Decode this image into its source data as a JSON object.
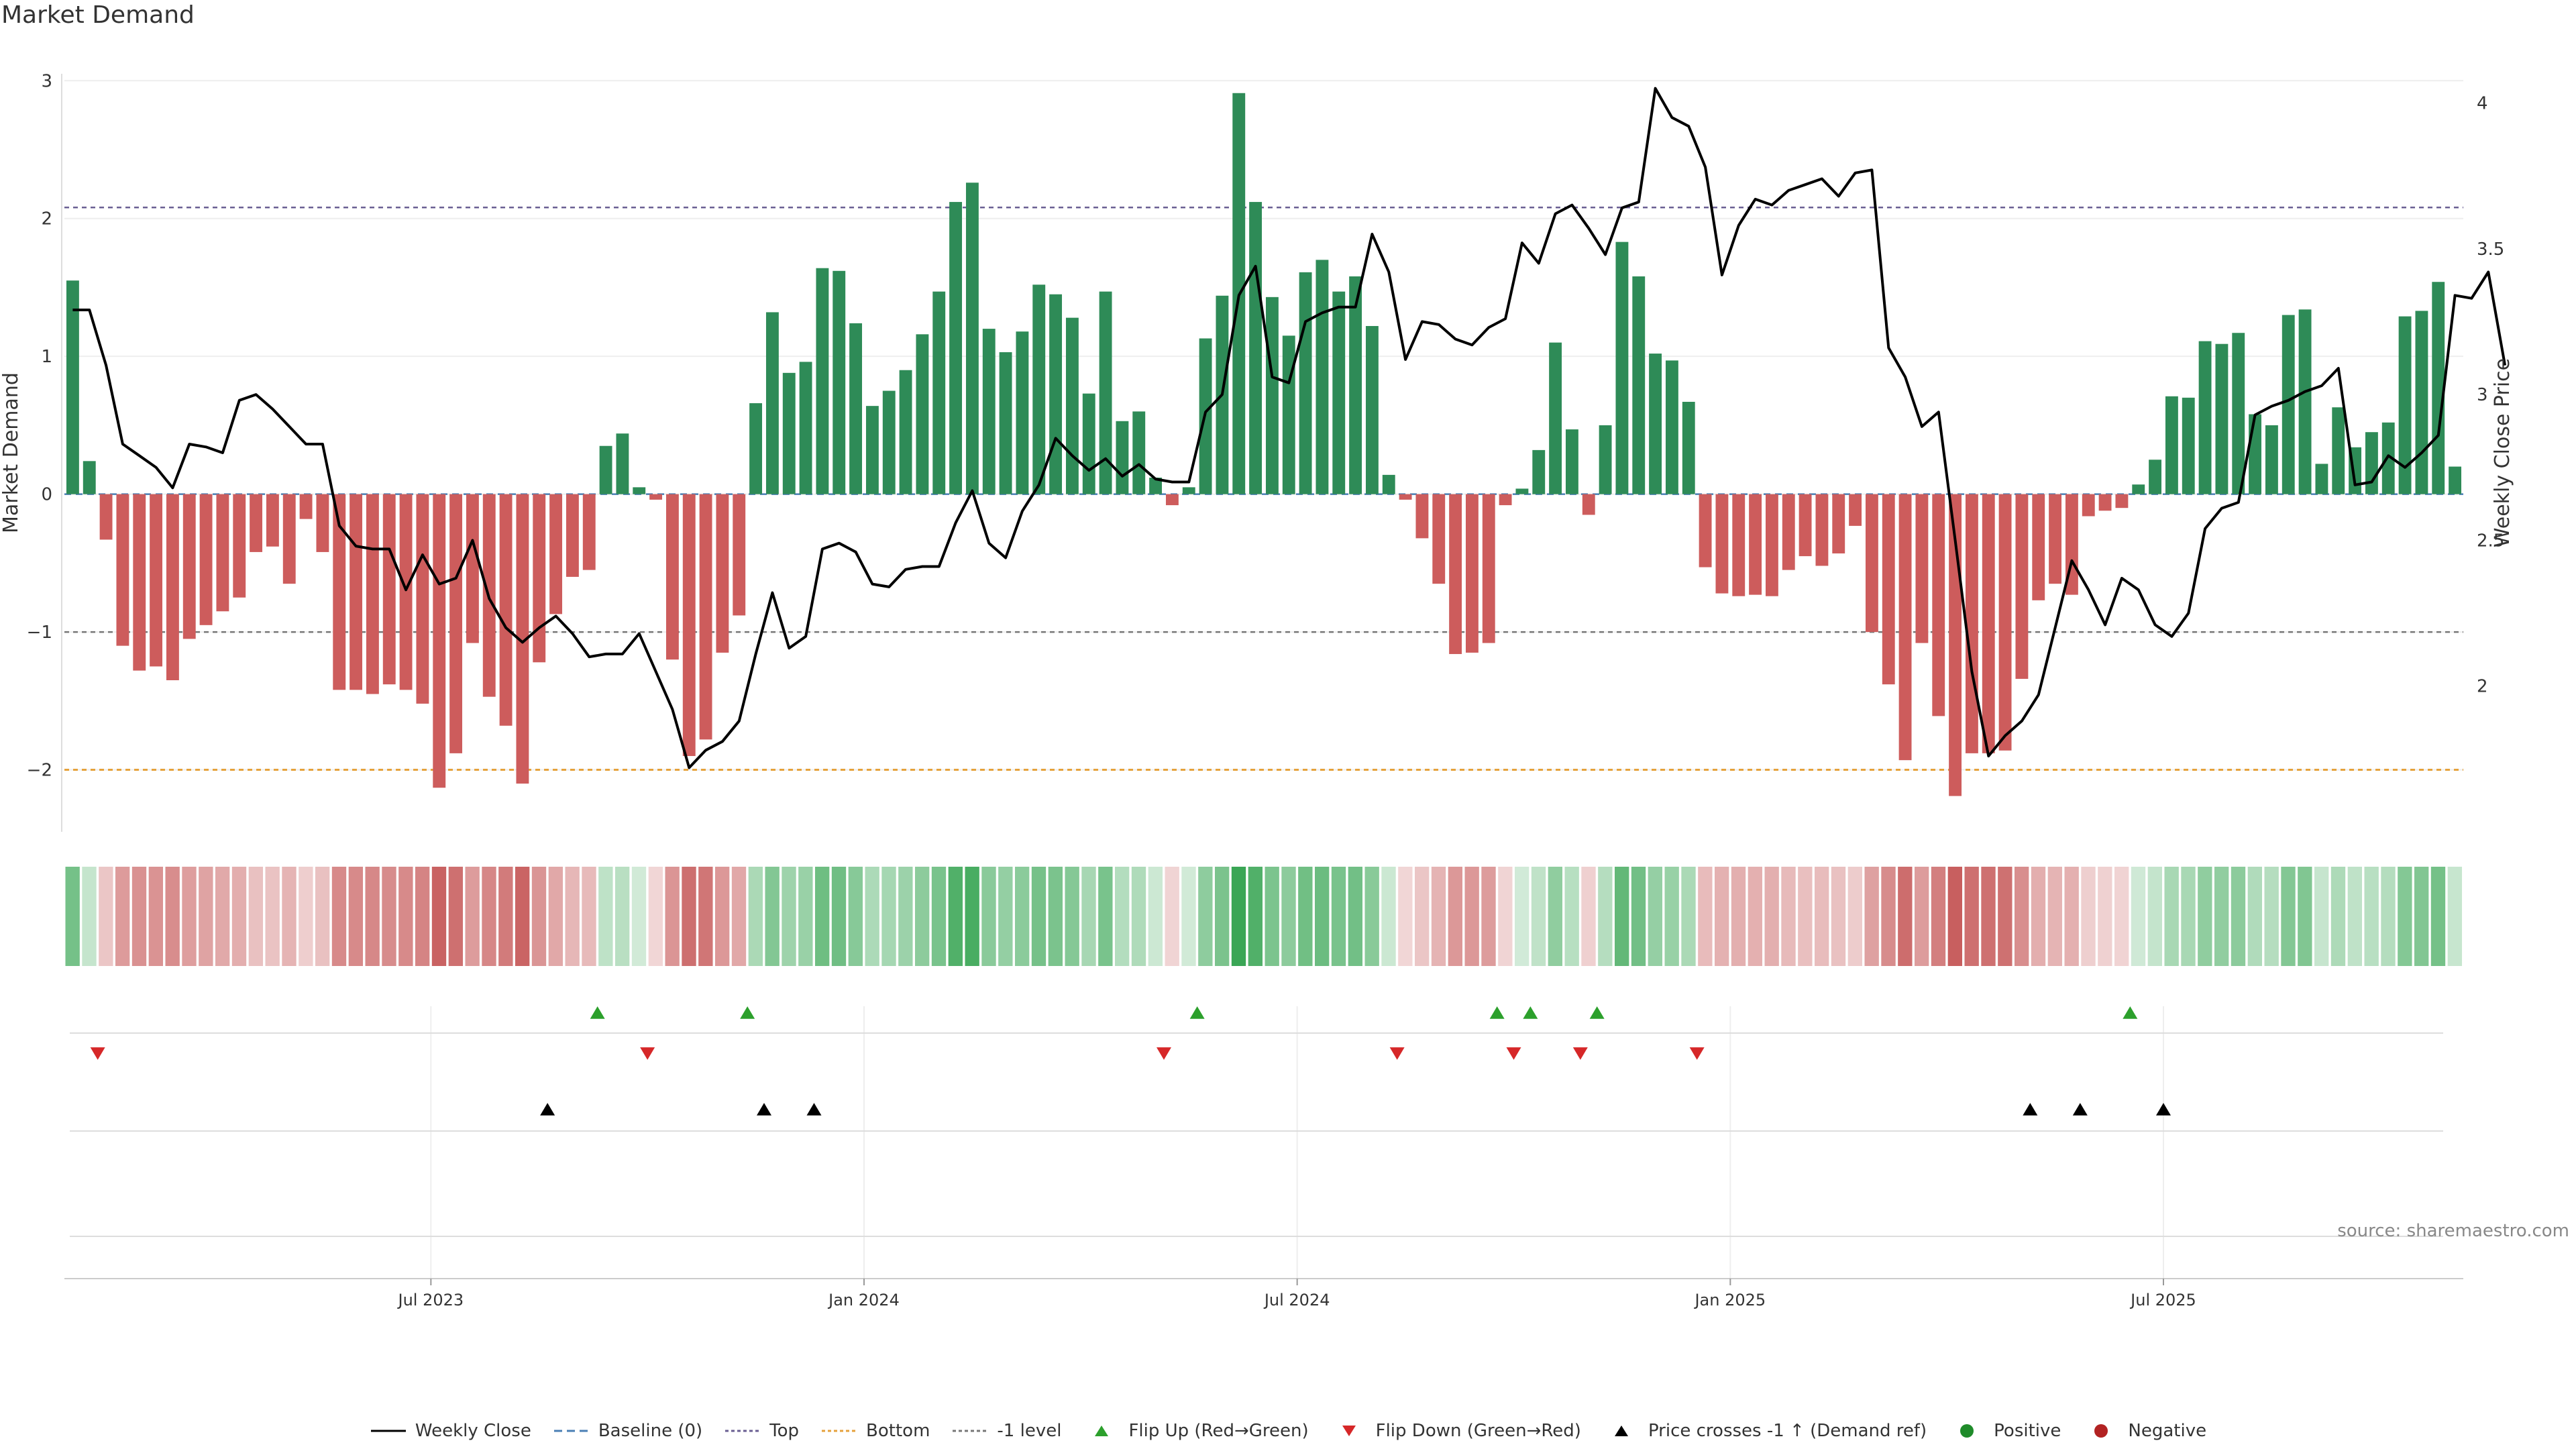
{
  "title": "Market Demand",
  "source": "source: sharemaestro.com",
  "colors": {
    "positive": "#2e8b57",
    "negative": "#cd5c5c",
    "price": "#000000",
    "flip_up": "#2ca02c",
    "flip_down": "#d62728",
    "top_line": "#6a5f93",
    "bottom_line": "#e6a23c",
    "minus1_line": "#777777",
    "heat_pos": "#3aa655",
    "heat_neg": "#c24e4e"
  },
  "legend": [
    {
      "key": "weekly_close",
      "label": "Weekly Close",
      "icon": "solid-line-icon"
    },
    {
      "key": "baseline",
      "label": "Baseline (0)",
      "icon": "dashed-line-icon"
    },
    {
      "key": "top",
      "label": "Top",
      "icon": "dotted-line-icon"
    },
    {
      "key": "bottom",
      "label": "Bottom",
      "icon": "dotted-line-icon"
    },
    {
      "key": "minus1",
      "label": "-1 level",
      "icon": "dotted-line-icon"
    },
    {
      "key": "flip_up",
      "label": "Flip Up (Red→Green)",
      "icon": "triangle-up-icon"
    },
    {
      "key": "flip_down",
      "label": "Flip Down (Green→Red)",
      "icon": "triangle-down-icon"
    },
    {
      "key": "price_cross",
      "label": "Price crosses -1 ↑ (Demand ref)",
      "icon": "triangle-up-icon"
    },
    {
      "key": "positive",
      "label": "Positive",
      "icon": "circle-icon"
    },
    {
      "key": "negative",
      "label": "Negative",
      "icon": "circle-icon"
    }
  ],
  "chart_data": {
    "type": "bar",
    "title": "Market Demand",
    "ylabel": "Market Demand",
    "y2label": "Weekly Close Price",
    "xlabel": "",
    "ylim": [
      -2.45,
      3.05
    ],
    "y2lim": [
      1.5,
      4.1
    ],
    "yticks": [
      -2,
      -1,
      0,
      1,
      2,
      3
    ],
    "yticklabels": [
      "−2",
      "−1",
      "0",
      "1",
      "2",
      "3"
    ],
    "y2ticks": [
      2,
      2.5,
      3,
      3.5,
      4
    ],
    "y2ticklabels": [
      "2",
      "2.5",
      "3",
      "3.5",
      "4"
    ],
    "xticklabels": [
      "Jul 2023",
      "Jan 2024",
      "Jul 2024",
      "Jan 2025",
      "Jul 2025"
    ],
    "xtick_week_index": [
      22,
      48,
      74,
      100,
      126
    ],
    "levels": {
      "top": 2.08,
      "bottom": -2.0,
      "minus1": -1.0,
      "baseline": 0
    },
    "series": [
      {
        "name": "Market Demand",
        "kind": "bar",
        "values": [
          1.55,
          0.24,
          -0.33,
          -1.1,
          -1.28,
          -1.25,
          -1.35,
          -1.05,
          -0.95,
          -0.85,
          -0.75,
          -0.42,
          -0.38,
          -0.65,
          -0.18,
          -0.42,
          -1.42,
          -1.42,
          -1.45,
          -1.38,
          -1.42,
          -1.52,
          -2.13,
          -1.88,
          -1.08,
          -1.47,
          -1.68,
          -2.1,
          -1.22,
          -0.87,
          -0.6,
          -0.55,
          0.35,
          0.44,
          0.05,
          -0.04,
          -1.2,
          -1.9,
          -1.78,
          -1.15,
          -0.88,
          0.66,
          1.32,
          0.88,
          0.96,
          1.64,
          1.62,
          1.24,
          0.64,
          0.75,
          0.9,
          1.16,
          1.47,
          2.12,
          2.26,
          1.2,
          1.03,
          1.18,
          1.52,
          1.45,
          1.28,
          0.73,
          1.47,
          0.53,
          0.6,
          0.12,
          -0.08,
          0.05,
          1.13,
          1.44,
          2.91,
          2.12,
          1.43,
          1.15,
          1.61,
          1.7,
          1.47,
          1.58,
          1.22,
          0.14,
          -0.04,
          -0.32,
          -0.65,
          -1.16,
          -1.15,
          -1.08,
          -0.08,
          0.04,
          0.32,
          1.1,
          0.47,
          -0.15,
          0.5,
          1.83,
          1.58,
          1.02,
          0.97,
          0.67,
          -0.53,
          -0.72,
          -0.74,
          -0.73,
          -0.74,
          -0.55,
          -0.45,
          -0.52,
          -0.43,
          -0.23,
          -1.0,
          -1.38,
          -1.93,
          -1.08,
          -1.61,
          -2.19,
          -1.88,
          -1.88,
          -1.86,
          -1.34,
          -0.77,
          -0.65,
          -0.73,
          -0.16,
          -0.12,
          -0.1,
          0.07,
          0.25,
          0.71,
          0.7,
          1.11,
          1.09,
          1.17,
          0.58,
          0.5,
          1.3,
          1.34,
          0.22,
          0.63,
          0.34,
          0.45,
          0.52,
          1.29,
          1.33,
          1.54,
          0.2
        ]
      },
      {
        "name": "Weekly Close",
        "kind": "line",
        "axis": "right",
        "values": [
          3.29,
          3.29,
          3.1,
          2.83,
          2.79,
          2.75,
          2.68,
          2.83,
          2.82,
          2.8,
          2.98,
          3.0,
          2.95,
          2.89,
          2.83,
          2.83,
          2.55,
          2.48,
          2.47,
          2.47,
          2.33,
          2.45,
          2.35,
          2.37,
          2.5,
          2.3,
          2.2,
          2.15,
          2.2,
          2.24,
          2.18,
          2.1,
          2.11,
          2.11,
          2.18,
          2.05,
          1.92,
          1.72,
          1.78,
          1.81,
          1.88,
          2.11,
          2.32,
          2.13,
          2.17,
          2.47,
          2.49,
          2.46,
          2.35,
          2.34,
          2.4,
          2.41,
          2.41,
          2.56,
          2.67,
          2.49,
          2.44,
          2.6,
          2.69,
          2.85,
          2.79,
          2.74,
          2.78,
          2.72,
          2.76,
          2.71,
          2.7,
          2.7,
          2.94,
          3.0,
          3.34,
          3.44,
          3.06,
          3.04,
          3.25,
          3.28,
          3.3,
          3.3,
          3.55,
          3.42,
          3.12,
          3.25,
          3.24,
          3.19,
          3.17,
          3.23,
          3.26,
          3.52,
          3.45,
          3.62,
          3.65,
          3.57,
          3.48,
          3.64,
          3.66,
          4.05,
          3.95,
          3.92,
          3.78,
          3.41,
          3.58,
          3.67,
          3.65,
          3.7,
          3.72,
          3.74,
          3.68,
          3.76,
          3.77,
          3.16,
          3.06,
          2.89,
          2.94,
          2.5,
          2.05,
          1.76,
          1.83,
          1.88,
          1.97,
          2.2,
          2.43,
          2.33,
          2.21,
          2.37,
          2.33,
          2.21,
          2.17,
          2.25,
          2.54,
          2.61,
          2.63,
          2.93,
          2.96,
          2.98,
          3.01,
          3.03,
          3.09,
          2.69,
          2.7,
          2.79,
          2.75,
          2.8,
          2.86,
          3.34,
          3.33,
          3.42,
          3.1
        ]
      }
    ],
    "heat_strip": "color intensity follows Market Demand per week",
    "events": {
      "flip_up_weeks": [
        32,
        41,
        68,
        86,
        88,
        92,
        124
      ],
      "flip_down_weeks": [
        2,
        35,
        66,
        80,
        87,
        91,
        98
      ],
      "price_cross_weeks": [
        29,
        42,
        45,
        118,
        121,
        126
      ]
    }
  }
}
